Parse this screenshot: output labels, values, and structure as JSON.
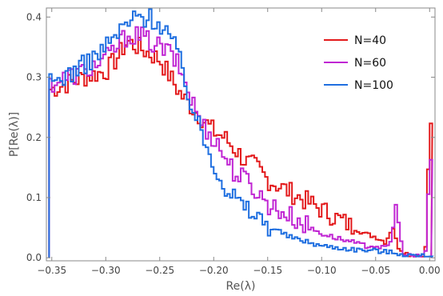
{
  "chart_data": {
    "type": "line",
    "xlabel": "Re(λ)",
    "ylabel": "P[Re(λ)]",
    "xlim": [
      -0.355,
      0.005
    ],
    "ylim": [
      -0.005,
      0.415
    ],
    "x_ticks": [
      -0.35,
      -0.3,
      -0.25,
      -0.2,
      -0.15,
      -0.1,
      -0.05,
      0.0
    ],
    "x_tick_labels": [
      "−0.35",
      "−0.30",
      "−0.25",
      "−0.20",
      "−0.15",
      "−0.10",
      "−0.05",
      "0.00"
    ],
    "y_ticks": [
      0.0,
      0.1,
      0.2,
      0.3,
      0.4
    ],
    "y_tick_labels": [
      "0.0",
      "0.1",
      "0.2",
      "0.3",
      "0.4"
    ],
    "legend_position": "top-right",
    "series": [
      {
        "name": "N=40",
        "color": "#e31a1c",
        "x": [
          -0.35,
          -0.32,
          -0.3,
          -0.29,
          -0.28,
          -0.27,
          -0.26,
          -0.25,
          -0.24,
          -0.23,
          -0.22,
          -0.21,
          -0.2,
          -0.19,
          -0.18,
          -0.17,
          -0.16,
          -0.15,
          -0.14,
          -0.13,
          -0.12,
          -0.11,
          -0.1,
          -0.09,
          -0.08,
          -0.07,
          -0.06,
          -0.05,
          -0.04,
          -0.035,
          -0.03,
          -0.025,
          -0.02,
          -0.01,
          -0.004,
          0.0
        ],
        "y": [
          0.28,
          0.3,
          0.31,
          0.33,
          0.36,
          0.35,
          0.34,
          0.33,
          0.3,
          0.27,
          0.25,
          0.23,
          0.21,
          0.2,
          0.18,
          0.16,
          0.15,
          0.13,
          0.12,
          0.11,
          0.1,
          0.09,
          0.08,
          0.07,
          0.06,
          0.05,
          0.04,
          0.035,
          0.025,
          0.06,
          0.02,
          0.012,
          0.006,
          0.003,
          0.003,
          0.215
        ]
      },
      {
        "name": "N=60",
        "color": "#c026d3",
        "x": [
          -0.35,
          -0.32,
          -0.3,
          -0.29,
          -0.28,
          -0.27,
          -0.26,
          -0.25,
          -0.24,
          -0.23,
          -0.22,
          -0.21,
          -0.2,
          -0.19,
          -0.18,
          -0.17,
          -0.16,
          -0.15,
          -0.14,
          -0.13,
          -0.12,
          -0.11,
          -0.1,
          -0.09,
          -0.08,
          -0.07,
          -0.06,
          -0.05,
          -0.04,
          -0.035,
          -0.032,
          -0.025,
          -0.02,
          -0.01,
          -0.004,
          0.0
        ],
        "y": [
          0.29,
          0.31,
          0.33,
          0.35,
          0.37,
          0.37,
          0.36,
          0.35,
          0.34,
          0.31,
          0.26,
          0.22,
          0.2,
          0.17,
          0.14,
          0.13,
          0.11,
          0.09,
          0.08,
          0.07,
          0.06,
          0.05,
          0.04,
          0.035,
          0.03,
          0.025,
          0.02,
          0.02,
          0.015,
          0.03,
          0.095,
          0.01,
          0.004,
          0.002,
          0.002,
          0.16
        ]
      },
      {
        "name": "N=100",
        "color": "#1f6fe0",
        "x": [
          -0.35,
          -0.32,
          -0.3,
          -0.29,
          -0.28,
          -0.27,
          -0.26,
          -0.25,
          -0.24,
          -0.23,
          -0.22,
          -0.21,
          -0.2,
          -0.19,
          -0.18,
          -0.17,
          -0.16,
          -0.15,
          -0.14,
          -0.13,
          -0.12,
          -0.11,
          -0.1,
          -0.09,
          -0.08,
          -0.07,
          -0.06,
          -0.05,
          -0.04,
          -0.03,
          -0.02,
          -0.01,
          0.0
        ],
        "y": [
          0.29,
          0.32,
          0.35,
          0.37,
          0.39,
          0.4,
          0.4,
          0.39,
          0.37,
          0.32,
          0.25,
          0.2,
          0.16,
          0.12,
          0.1,
          0.08,
          0.07,
          0.055,
          0.045,
          0.035,
          0.03,
          0.025,
          0.02,
          0.018,
          0.016,
          0.014,
          0.013,
          0.012,
          0.01,
          0.008,
          0.005,
          0.003,
          0.003
        ]
      }
    ]
  }
}
